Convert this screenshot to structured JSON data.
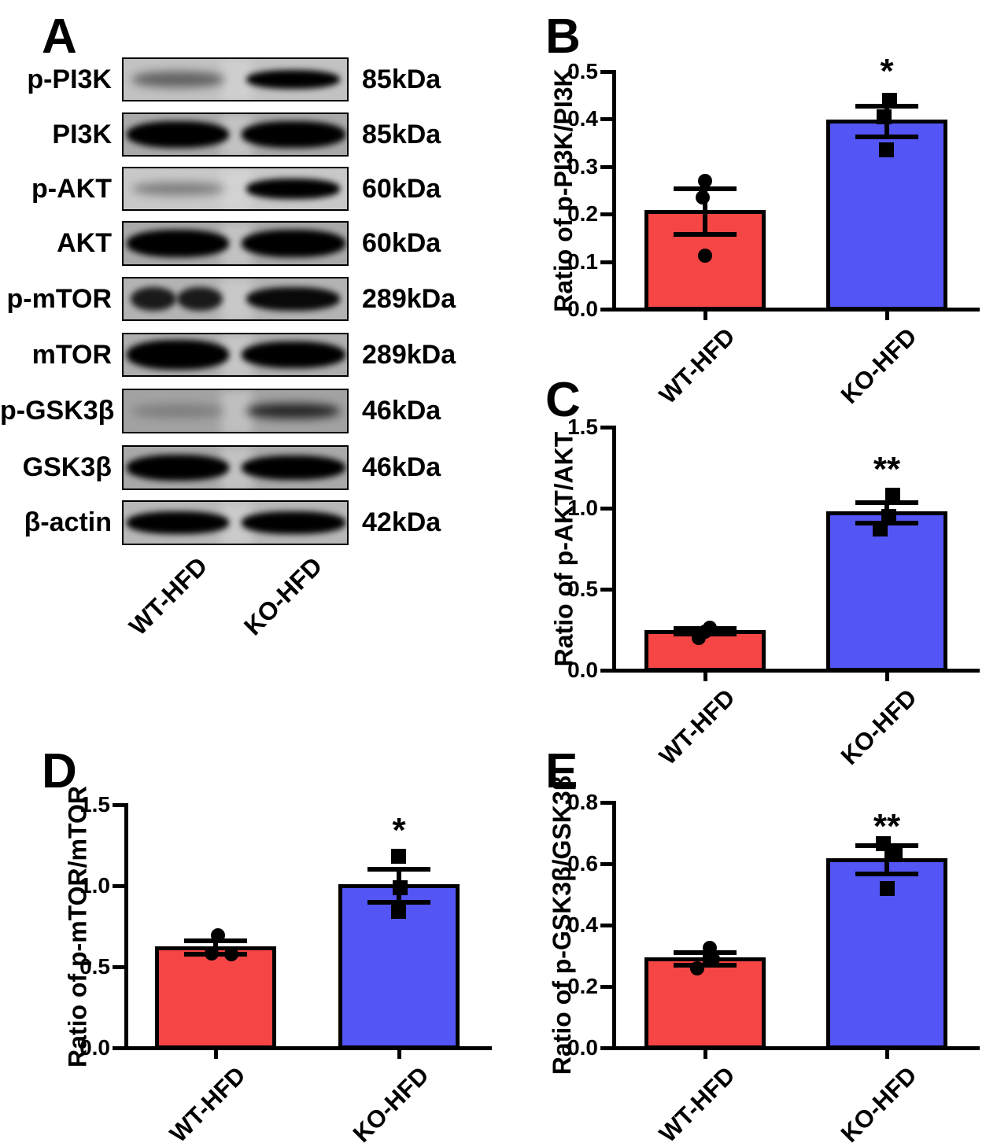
{
  "western_blot": {
    "panel_label": "A",
    "lane_labels": [
      "WT-HFD",
      "KO-HFD"
    ],
    "rows": [
      {
        "protein": "p-PI3K",
        "mw": "85kDa",
        "bg": "#c2c2c2",
        "bands": [
          {
            "lane": "WT-HFD",
            "intensity": 0.5,
            "thickness": 0.36
          },
          {
            "lane": "KO-HFD",
            "intensity": 1,
            "thickness": 0.44
          }
        ]
      },
      {
        "protein": "PI3K",
        "mw": "85kDa",
        "bg": "#a9a9a9",
        "bands": [
          {
            "lane": "WT-HFD",
            "intensity": 1,
            "thickness": 0.62,
            "wide": true
          },
          {
            "lane": "KO-HFD",
            "intensity": 1,
            "thickness": 0.6,
            "wide": true
          }
        ]
      },
      {
        "protein": "p-AKT",
        "mw": "60kDa",
        "bg": "#c8c8c8",
        "bands": [
          {
            "lane": "WT-HFD",
            "intensity": 0.38,
            "thickness": 0.3
          },
          {
            "lane": "KO-HFD",
            "intensity": 1,
            "thickness": 0.46
          }
        ]
      },
      {
        "protein": "AKT",
        "mw": "60kDa",
        "bg": "#a9a9a9",
        "bands": [
          {
            "lane": "WT-HFD",
            "intensity": 1,
            "thickness": 0.62,
            "wide": true
          },
          {
            "lane": "KO-HFD",
            "intensity": 1,
            "thickness": 0.62,
            "wide": true
          }
        ]
      },
      {
        "protein": "p-mTOR",
        "mw": "289kDa",
        "bg": "#b3b3b3",
        "bands": [
          {
            "lane": "WT-HFD",
            "intensity": 0.85,
            "thickness": 0.55,
            "split": true
          },
          {
            "lane": "KO-HFD",
            "intensity": 0.95,
            "thickness": 0.55
          }
        ]
      },
      {
        "protein": "mTOR",
        "mw": "289kDa",
        "bg": "#aeaeae",
        "bands": [
          {
            "lane": "WT-HFD",
            "intensity": 1,
            "thickness": 0.68,
            "wide": true
          },
          {
            "lane": "KO-HFD",
            "intensity": 1,
            "thickness": 0.62,
            "wide": true
          }
        ]
      },
      {
        "protein": "p-GSK3β",
        "mw": "46kDa",
        "bg": "#a2a2a2",
        "bands": [
          {
            "lane": "WT-HFD",
            "intensity": 0.22,
            "thickness": 0.3
          },
          {
            "lane": "KO-HFD",
            "intensity": 0.78,
            "thickness": 0.34
          }
        ]
      },
      {
        "protein": "GSK3β",
        "mw": "46kDa",
        "bg": "#a9a9a9",
        "bands": [
          {
            "lane": "WT-HFD",
            "intensity": 1,
            "thickness": 0.58,
            "wide": true
          },
          {
            "lane": "KO-HFD",
            "intensity": 1,
            "thickness": 0.55,
            "wide": true
          }
        ]
      },
      {
        "protein": "β-actin",
        "mw": "42kDa",
        "bg": "#b8b8b8",
        "bands": [
          {
            "lane": "WT-HFD",
            "intensity": 1,
            "thickness": 0.5,
            "wide": true
          },
          {
            "lane": "KO-HFD",
            "intensity": 1,
            "thickness": 0.5,
            "wide": true
          }
        ]
      }
    ]
  },
  "chart_data": [
    {
      "type": "bar",
      "panel": "B",
      "ylabel": "Ratio of p-PI3K/PI3K",
      "categories": [
        "WT-HFD",
        "KO-HFD"
      ],
      "ylim": [
        0,
        0.5
      ],
      "yticks": [
        0,
        0.1,
        0.2,
        0.3,
        0.4,
        0.5
      ],
      "ytick_labels": [
        "0.0",
        "0.1",
        "0.2",
        "0.3",
        "0.4",
        "0.5"
      ],
      "grid": false,
      "legend": "none",
      "series": [
        {
          "name": "WT-HFD",
          "mean": 0.205,
          "sem": 0.048,
          "points": [
            0.27,
            0.235,
            0.112
          ],
          "color": "#F54545",
          "marker": "circle"
        },
        {
          "name": "KO-HFD",
          "mean": 0.395,
          "sem": 0.032,
          "points": [
            0.44,
            0.405,
            0.335
          ],
          "color": "#5455F5",
          "marker": "square"
        }
      ],
      "significance": {
        "label": "*",
        "over": "KO-HFD",
        "y": 0.5
      }
    },
    {
      "type": "bar",
      "panel": "C",
      "ylabel": "Ratio of p-AKT/AKT",
      "categories": [
        "WT-HFD",
        "KO-HFD"
      ],
      "ylim": [
        0,
        1.5
      ],
      "yticks": [
        0,
        0.5,
        1.0,
        1.5
      ],
      "ytick_labels": [
        "0.0",
        "0.5",
        "1.0",
        "1.5"
      ],
      "grid": false,
      "legend": "none",
      "series": [
        {
          "name": "WT-HFD",
          "mean": 0.24,
          "sem": 0.017,
          "points": [
            0.26,
            0.24,
            0.2
          ],
          "color": "#F54545",
          "marker": "circle"
        },
        {
          "name": "KO-HFD",
          "mean": 0.97,
          "sem": 0.062,
          "points": [
            1.08,
            0.95,
            0.87
          ],
          "color": "#5455F5",
          "marker": "square"
        }
      ],
      "significance": {
        "label": "**",
        "over": "KO-HFD",
        "y": 1.24
      }
    },
    {
      "type": "bar",
      "panel": "D",
      "ylabel": "Ratio of p-mTOR/mTOR",
      "categories": [
        "WT-HFD",
        "KO-HFD"
      ],
      "ylim": [
        0,
        1.5
      ],
      "yticks": [
        0,
        0.5,
        1.0,
        1.5
      ],
      "ytick_labels": [
        "0.0",
        "0.5",
        "1.0",
        "1.5"
      ],
      "grid": false,
      "legend": "none",
      "series": [
        {
          "name": "WT-HFD",
          "mean": 0.618,
          "sem": 0.04,
          "points": [
            0.695,
            0.582,
            0.578
          ],
          "color": "#F54545",
          "marker": "circle"
        },
        {
          "name": "KO-HFD",
          "mean": 1.0,
          "sem": 0.103,
          "points": [
            1.18,
            0.99,
            0.84
          ],
          "color": "#5455F5",
          "marker": "square"
        }
      ],
      "significance": {
        "label": "*",
        "over": "KO-HFD",
        "y": 1.34
      }
    },
    {
      "type": "bar",
      "panel": "E",
      "ylabel": "Ratio of p-GSK3β/GSK3β",
      "categories": [
        "WT-HFD",
        "KO-HFD"
      ],
      "ylim": [
        0,
        0.8
      ],
      "yticks": [
        0,
        0.2,
        0.4,
        0.6,
        0.8
      ],
      "ytick_labels": [
        "0.0",
        "0.2",
        "0.4",
        "0.6",
        "0.8"
      ],
      "grid": false,
      "legend": "none",
      "series": [
        {
          "name": "WT-HFD",
          "mean": 0.29,
          "sem": 0.021,
          "points": [
            0.325,
            0.29,
            0.258
          ],
          "color": "#F54545",
          "marker": "circle"
        },
        {
          "name": "KO-HFD",
          "mean": 0.613,
          "sem": 0.046,
          "points": [
            0.665,
            0.635,
            0.52
          ],
          "color": "#5455F5",
          "marker": "square"
        }
      ],
      "significance": {
        "label": "**",
        "over": "KO-HFD",
        "y": 0.72
      }
    }
  ]
}
